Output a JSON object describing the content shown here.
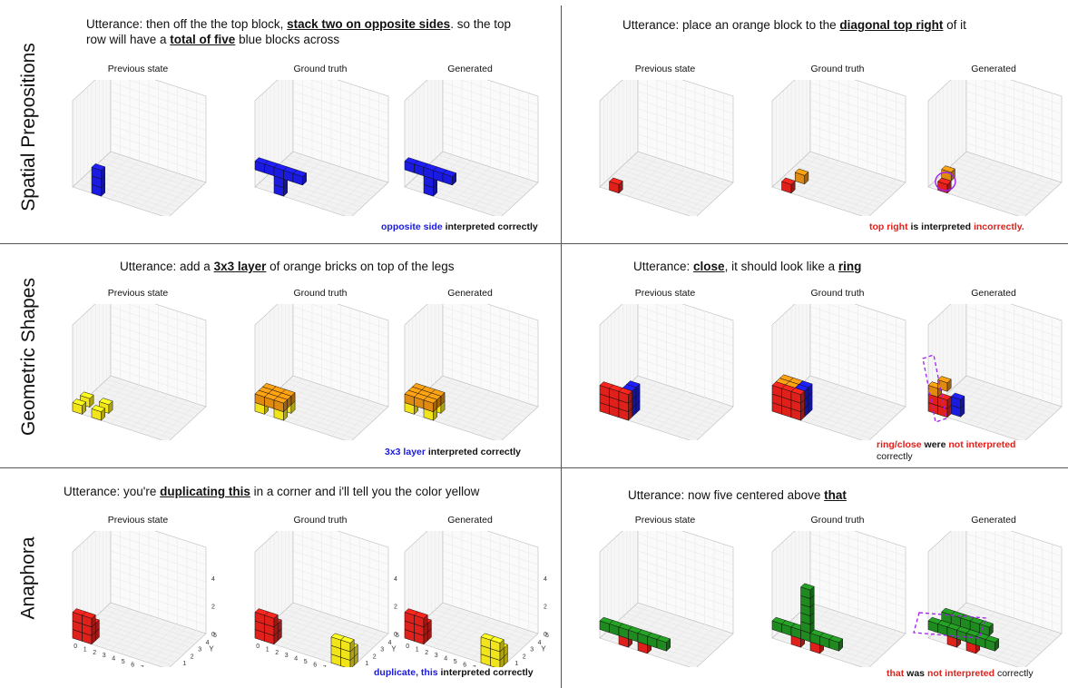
{
  "rows": [
    {
      "label": "Spatial Prepositions"
    },
    {
      "label": "Geometric Shapes"
    },
    {
      "label": "Anaphora"
    }
  ],
  "panel_titles": {
    "prev": "Previous state",
    "gt": "Ground truth",
    "gen": "Generated"
  },
  "colors": {
    "blue": "#1a1ae0",
    "red": "#e0201a",
    "orange": "#e08a10",
    "yellow": "#f2e41a",
    "green": "#1f8a1f",
    "purple": "#a020f0"
  },
  "cells": {
    "c1": {
      "utter_pre": "Utterance: then off the the top block, ",
      "utter_b1": "stack two on opposite sides",
      "utter_mid": ". so the top row will have a ",
      "utter_b2": "total of five",
      "utter_post": " blue blocks across",
      "note_colored": "opposite side",
      "note_rest": " interpreted correctly"
    },
    "c2": {
      "utter_pre": "Utterance: place an orange block to the ",
      "utter_b1": "diagonal top right",
      "utter_post": " of it",
      "note_colored": "top right",
      "note_mid": " is interpreted ",
      "note_colored2": "incorrectly."
    },
    "c3": {
      "utter_pre": "Utterance: add a ",
      "utter_b1": "3x3 layer",
      "utter_post": " of orange bricks on top of the legs",
      "note_colored": "3x3 layer",
      "note_rest": " interpreted correctly"
    },
    "c4": {
      "utter_pre": "Utterance: ",
      "utter_b1": "close",
      "utter_mid": ", it should look like a ",
      "utter_b2": "ring",
      "note_colored": "ring/close",
      "note_mid": " were ",
      "note_colored2": "not interpreted",
      "note_rest": "correctly"
    },
    "c5": {
      "utter_pre": "Utterance: you're ",
      "utter_b1": "duplicating this",
      "utter_post": " in a corner and i'll tell you the color yellow",
      "note_colored": "duplicate, this",
      "note_rest": " interpreted correctly"
    },
    "c6": {
      "utter_pre": "Utterance: now five centered above ",
      "utter_b1": "that",
      "note_colored": "that",
      "note_mid": " was ",
      "note_colored2": "not interpreted",
      "note_rest": " correctly"
    }
  },
  "axes_labels": {
    "x": "X",
    "y": "Y",
    "z": "Z"
  },
  "x_ticks": [
    "0",
    "1",
    "2",
    "3",
    "4",
    "5",
    "6",
    "7",
    "8",
    "9",
    "10"
  ],
  "y_ticks": [
    "0",
    "1",
    "2",
    "3",
    "4",
    "5"
  ],
  "z_ticks": [
    "0",
    "2",
    "4"
  ]
}
